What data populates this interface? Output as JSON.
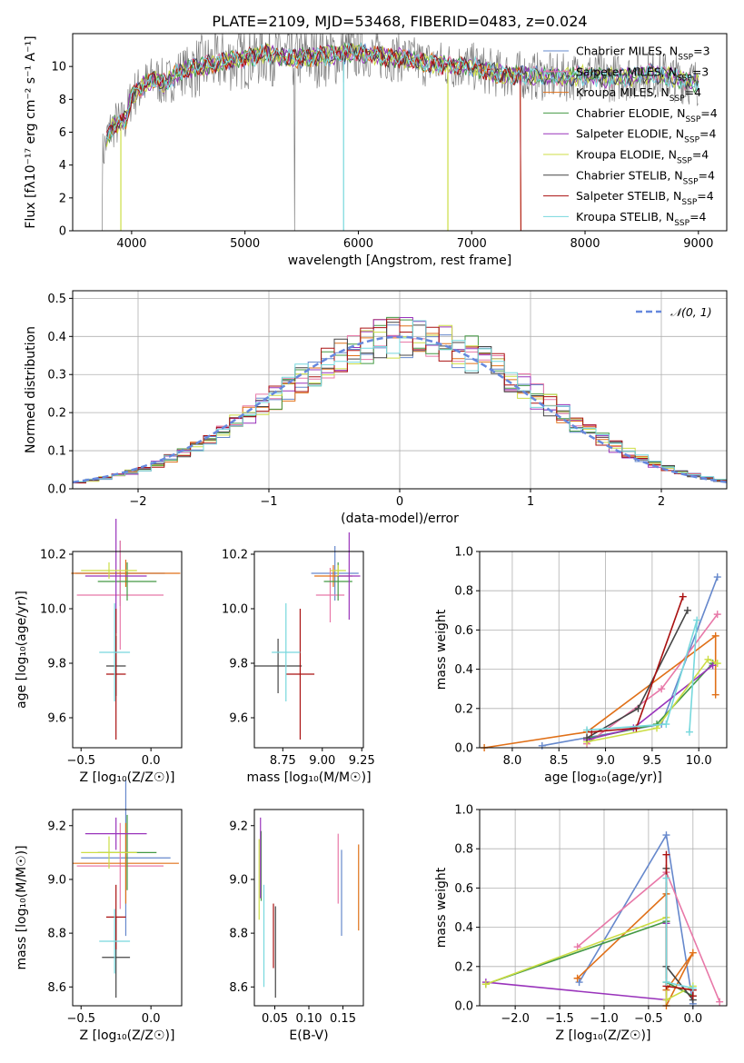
{
  "figure": {
    "title": "PLATE=2109, MJD=53468, FIBERID=0483, z=0.024"
  },
  "models": [
    {
      "name": "Chabrier MILES",
      "nssp": "3",
      "color": "#6688cc"
    },
    {
      "name": "Salpeter MILES",
      "nssp": "3",
      "color": "#e878a8"
    },
    {
      "name": "Kroupa MILES",
      "nssp": "4",
      "color": "#e07018"
    },
    {
      "name": "Chabrier ELODIE",
      "nssp": "4",
      "color": "#449944"
    },
    {
      "name": "Salpeter ELODIE",
      "nssp": "4",
      "color": "#9933bb"
    },
    {
      "name": "Kroupa ELODIE",
      "nssp": "4",
      "color": "#ccdd44"
    },
    {
      "name": "Chabrier STELIB",
      "nssp": "4",
      "color": "#444444"
    },
    {
      "name": "Salpeter STELIB",
      "nssp": "4",
      "color": "#aa1111"
    },
    {
      "name": "Kroupa STELIB",
      "nssp": "4",
      "color": "#77d8dd"
    }
  ],
  "chart_data": [
    {
      "type": "line",
      "id": "spectrum",
      "title": "PLATE=2109, MJD=53468, FIBERID=0483, z=0.024",
      "xlabel": "wavelength [Angstrom, rest frame]",
      "ylabel": "Flux [fλ10⁻¹⁷ erg cm⁻² s⁻¹ A⁻¹]",
      "xlim": [
        3480,
        9250
      ],
      "ylim": [
        0,
        12
      ],
      "xticks": [
        4000,
        5000,
        6000,
        7000,
        8000,
        9000
      ],
      "yticks": [
        0,
        2,
        4,
        6,
        8,
        10
      ],
      "legend": "top-right",
      "legend_entries": [
        "Chabrier MILES, N_SSP=3",
        "Salpeter MILES, N_SSP=3",
        "Kroupa MILES, N_SSP=4",
        "Chabrier ELODIE, N_SSP=4",
        "Salpeter ELODIE, N_SSP=4",
        "Kroupa ELODIE, N_SSP=4",
        "Chabrier STELIB, N_SSP=4",
        "Salpeter STELIB, N_SSP=4",
        "Kroupa STELIB, N_SSP=4"
      ],
      "continuum": {
        "x": [
          3740,
          3800,
          3850,
          3900,
          3950,
          4000,
          4100,
          4200,
          4300,
          4400,
          4600,
          4800,
          5000,
          5200,
          5400,
          5600,
          5800,
          6000,
          6200,
          6400,
          6600,
          6800,
          7000,
          7200,
          7400,
          7600,
          7800,
          8000,
          8200,
          8400,
          8600,
          8800,
          9000
        ],
        "y": [
          4.5,
          6.0,
          6.5,
          6.5,
          6.8,
          8.2,
          8.8,
          9.3,
          8.9,
          9.6,
          10.0,
          10.3,
          10.5,
          10.8,
          10.5,
          10.6,
          10.7,
          10.9,
          10.6,
          10.5,
          10.2,
          10.1,
          10.0,
          9.6,
          9.5,
          9.4,
          9.3,
          9.5,
          9.3,
          9.4,
          9.6,
          9.3,
          9.0
        ]
      },
      "model_cut": {
        "Salpeter STELIB": 7430,
        "Kroupa MILES": 7430
      }
    },
    {
      "type": "bar",
      "id": "residuals",
      "xlabel": "(data-model)/error",
      "ylabel": "Normed distribution",
      "xlim": [
        -2.5,
        2.5
      ],
      "ylim": [
        0,
        0.52
      ],
      "xticks": [
        -2,
        -1,
        0,
        1,
        2
      ],
      "yticks": [
        0.0,
        0.1,
        0.2,
        0.3,
        0.4,
        0.5
      ],
      "grid": true,
      "legend": "top-right",
      "reference": "𝒩(0, 1)",
      "bin_width": 0.1,
      "bin_start": -2.6
    },
    {
      "type": "scatter",
      "id": "age_vs_Z",
      "xlabel": "Z [log₁₀(Z/Z☉)]",
      "ylabel": "age  [log₁₀(age/yr)]",
      "xlim": [
        -0.56,
        0.22
      ],
      "ylim": [
        9.49,
        10.21
      ],
      "xticks": [
        -0.5,
        0.0
      ],
      "yticks": [
        9.6,
        9.8,
        10.0,
        10.2
      ],
      "points": [
        {
          "model": "Chabrier MILES",
          "x": -0.22,
          "y": 10.13,
          "xerr": 0.32,
          "yerr": 0.12
        },
        {
          "model": "Salpeter MILES",
          "x": -0.22,
          "y": 10.05,
          "xerr": 0.31,
          "yerr": 0.2
        },
        {
          "model": "Kroupa MILES",
          "x": -0.18,
          "y": 10.13,
          "xerr": 0.39,
          "yerr": 0.05
        },
        {
          "model": "Chabrier ELODIE",
          "x": -0.17,
          "y": 10.1,
          "xerr": 0.21,
          "yerr": 0.07
        },
        {
          "model": "Salpeter ELODIE",
          "x": -0.25,
          "y": 10.12,
          "xerr": 0.22,
          "yerr": 0.21
        },
        {
          "model": "Kroupa ELODIE",
          "x": -0.3,
          "y": 10.14,
          "xerr": 0.2,
          "yerr": 0.03
        },
        {
          "model": "Chabrier STELIB",
          "x": -0.25,
          "y": 9.79,
          "xerr": 0.07,
          "yerr": 0.11
        },
        {
          "model": "Salpeter STELIB",
          "x": -0.25,
          "y": 9.76,
          "xerr": 0.07,
          "yerr": 0.24
        },
        {
          "model": "Kroupa STELIB",
          "x": -0.26,
          "y": 9.84,
          "xerr": 0.11,
          "yerr": 0.18
        }
      ]
    },
    {
      "type": "scatter",
      "id": "age_vs_mass",
      "xlabel": "mass [log₁₀(M/M☉)]",
      "ylabel": "",
      "xlim": [
        8.57,
        9.26
      ],
      "ylim": [
        9.49,
        10.21
      ],
      "xticks": [
        8.75,
        9.0,
        9.25
      ],
      "yticks": [
        9.6,
        9.8,
        10.0,
        10.2
      ],
      "points": [
        {
          "model": "Chabrier MILES",
          "x": 9.08,
          "y": 10.13,
          "xerr": 0.15,
          "yerr": 0.1
        },
        {
          "model": "Salpeter MILES",
          "x": 9.05,
          "y": 10.05,
          "xerr": 0.09,
          "yerr": 0.1
        },
        {
          "model": "Kroupa MILES",
          "x": 9.07,
          "y": 10.12,
          "xerr": 0.12,
          "yerr": 0.04
        },
        {
          "model": "Chabrier ELODIE",
          "x": 9.1,
          "y": 10.1,
          "xerr": 0.09,
          "yerr": 0.07
        },
        {
          "model": "Salpeter ELODIE",
          "x": 9.17,
          "y": 10.12,
          "xerr": 0.07,
          "yerr": 0.16
        },
        {
          "model": "Kroupa ELODIE",
          "x": 9.1,
          "y": 10.14,
          "xerr": 0.05,
          "yerr": 0.02
        },
        {
          "model": "Chabrier STELIB",
          "x": 8.72,
          "y": 9.79,
          "xerr": 0.15,
          "yerr": 0.1
        },
        {
          "model": "Salpeter STELIB",
          "x": 8.86,
          "y": 9.76,
          "xerr": 0.09,
          "yerr": 0.24
        },
        {
          "model": "Kroupa STELIB",
          "x": 8.77,
          "y": 9.84,
          "xerr": 0.09,
          "yerr": 0.18
        }
      ]
    },
    {
      "type": "line",
      "id": "weight_vs_age",
      "xlabel": "age  [log₁₀(age/yr)]",
      "ylabel": "mass weight",
      "xlim": [
        7.65,
        10.3
      ],
      "ylim": [
        0,
        1.0
      ],
      "xticks": [
        8.0,
        8.5,
        9.0,
        9.5,
        10.0
      ],
      "yticks": [
        0.0,
        0.2,
        0.4,
        0.6,
        0.8,
        1.0
      ],
      "grid": true,
      "series": [
        {
          "model": "Chabrier MILES",
          "x": [
            8.32,
            9.6,
            10.2
          ],
          "y": [
            0.01,
            0.12,
            0.87
          ]
        },
        {
          "model": "Salpeter MILES",
          "x": [
            8.8,
            9.6,
            10.2
          ],
          "y": [
            0.02,
            0.3,
            0.68
          ]
        },
        {
          "model": "Kroupa MILES",
          "x": [
            7.7,
            8.8,
            10.18,
            10.18
          ],
          "y": [
            0.0,
            0.08,
            0.57,
            0.27
          ]
        },
        {
          "model": "Chabrier ELODIE",
          "x": [
            8.85,
            9.55,
            10.15
          ],
          "y": [
            0.05,
            0.12,
            0.43
          ]
        },
        {
          "model": "Salpeter ELODIE",
          "x": [
            8.8,
            9.3,
            10.15
          ],
          "y": [
            0.04,
            0.1,
            0.42
          ]
        },
        {
          "model": "Kroupa ELODIE",
          "x": [
            8.8,
            9.55,
            10.1,
            10.2
          ],
          "y": [
            0.03,
            0.1,
            0.45,
            0.43
          ]
        },
        {
          "model": "Chabrier STELIB",
          "x": [
            8.8,
            9.35,
            9.88
          ],
          "y": [
            0.05,
            0.2,
            0.7
          ]
        },
        {
          "model": "Salpeter STELIB",
          "x": [
            8.85,
            9.33,
            9.83
          ],
          "y": [
            0.08,
            0.1,
            0.77
          ]
        },
        {
          "model": "Kroupa STELIB",
          "x": [
            8.8,
            9.65,
            9.98,
            9.9
          ],
          "y": [
            0.09,
            0.12,
            0.65,
            0.08
          ]
        }
      ]
    },
    {
      "type": "scatter",
      "id": "mass_vs_Z",
      "xlabel": "Z [log₁₀(Z/Z☉)]",
      "ylabel": "mass [log₁₀(M/M☉)]",
      "xlim": [
        -0.56,
        0.22
      ],
      "ylim": [
        8.53,
        9.26
      ],
      "xticks": [
        -0.5,
        0.0
      ],
      "yticks": [
        8.6,
        8.8,
        9.0,
        9.2
      ],
      "points": [
        {
          "model": "Chabrier MILES",
          "x": -0.18,
          "y": 9.08,
          "xerr": 0.32,
          "yerr": 0.29
        },
        {
          "model": "Salpeter MILES",
          "x": -0.22,
          "y": 9.05,
          "xerr": 0.31,
          "yerr": 0.16
        },
        {
          "model": "Kroupa MILES",
          "x": -0.18,
          "y": 9.06,
          "xerr": 0.38,
          "yerr": 0.15
        },
        {
          "model": "Chabrier ELODIE",
          "x": -0.17,
          "y": 9.1,
          "xerr": 0.21,
          "yerr": 0.14
        },
        {
          "model": "Salpeter ELODIE",
          "x": -0.25,
          "y": 9.17,
          "xerr": 0.22,
          "yerr": 0.06
        },
        {
          "model": "Kroupa ELODIE",
          "x": -0.3,
          "y": 9.1,
          "xerr": 0.2,
          "yerr": 0.06
        },
        {
          "model": "Chabrier STELIB",
          "x": -0.25,
          "y": 8.71,
          "xerr": 0.1,
          "yerr": 0.15
        },
        {
          "model": "Salpeter STELIB",
          "x": -0.25,
          "y": 8.86,
          "xerr": 0.07,
          "yerr": 0.12
        },
        {
          "model": "Kroupa STELIB",
          "x": -0.26,
          "y": 8.77,
          "xerr": 0.11,
          "yerr": 0.12
        }
      ]
    },
    {
      "type": "scatter",
      "id": "mass_vs_ebv",
      "xlabel": "E(B-V)",
      "ylabel": "",
      "xlim": [
        0.02,
        0.18
      ],
      "ylim": [
        8.53,
        9.26
      ],
      "xticks": [
        0.05,
        0.1,
        0.15
      ],
      "yticks": [
        8.6,
        8.8,
        9.0,
        9.2
      ],
      "points": [
        {
          "model": "Chabrier MILES",
          "x": 0.148,
          "y": 8.95,
          "xerr": 0,
          "yerr": 0.16
        },
        {
          "model": "Salpeter MILES",
          "x": 0.143,
          "y": 9.04,
          "xerr": 0,
          "yerr": 0.13
        },
        {
          "model": "Kroupa MILES",
          "x": 0.173,
          "y": 8.97,
          "xerr": 0,
          "yerr": 0.16
        },
        {
          "model": "Chabrier ELODIE",
          "x": 0.03,
          "y": 9.05,
          "xerr": 0,
          "yerr": 0.13
        },
        {
          "model": "Salpeter ELODIE",
          "x": 0.029,
          "y": 9.08,
          "xerr": 0,
          "yerr": 0.15
        },
        {
          "model": "Kroupa ELODIE",
          "x": 0.027,
          "y": 9.0,
          "xerr": 0,
          "yerr": 0.15
        },
        {
          "model": "Chabrier STELIB",
          "x": 0.051,
          "y": 8.73,
          "xerr": 0,
          "yerr": 0.17
        },
        {
          "model": "Salpeter STELIB",
          "x": 0.048,
          "y": 8.79,
          "xerr": 0,
          "yerr": 0.12
        },
        {
          "model": "Kroupa STELIB",
          "x": 0.034,
          "y": 8.79,
          "xerr": 0,
          "yerr": 0.19
        }
      ]
    },
    {
      "type": "line",
      "id": "weight_vs_Z",
      "xlabel": "Z [log₁₀(Z/Z☉)]",
      "ylabel": "mass weight",
      "xlim": [
        -2.4,
        0.38
      ],
      "ylim": [
        0,
        1.0
      ],
      "xticks": [
        -2.0,
        -1.5,
        -1.0,
        -0.5,
        0.0
      ],
      "yticks": [
        0.0,
        0.2,
        0.4,
        0.6,
        0.8,
        1.0
      ],
      "grid": true,
      "series": [
        {
          "model": "Chabrier MILES",
          "x": [
            -1.28,
            -0.3,
            0.0
          ],
          "y": [
            0.12,
            0.87,
            0.01
          ]
        },
        {
          "model": "Salpeter MILES",
          "x": [
            -1.3,
            -0.3,
            0.3
          ],
          "y": [
            0.3,
            0.68,
            0.02
          ]
        },
        {
          "model": "Kroupa MILES",
          "x": [
            -1.3,
            -0.3,
            -0.3,
            0.0,
            -0.3
          ],
          "y": [
            0.14,
            0.57,
            0.0,
            0.27,
            0.08
          ]
        },
        {
          "model": "Chabrier ELODIE",
          "x": [
            -2.33,
            -0.3,
            -0.3,
            0.0
          ],
          "y": [
            0.11,
            0.43,
            0.12,
            0.05
          ]
        },
        {
          "model": "Salpeter ELODIE",
          "x": [
            -2.33,
            -0.3,
            -0.3
          ],
          "y": [
            0.12,
            0.03,
            0.42
          ]
        },
        {
          "model": "Kroupa ELODIE",
          "x": [
            -2.33,
            -0.3,
            -0.3,
            0.0
          ],
          "y": [
            0.11,
            0.45,
            0.03,
            0.1
          ]
        },
        {
          "model": "Chabrier STELIB",
          "x": [
            -0.3,
            -0.3,
            0.0
          ],
          "y": [
            0.7,
            0.2,
            0.03
          ]
        },
        {
          "model": "Salpeter STELIB",
          "x": [
            -0.3,
            -0.3,
            0.0,
            0.0
          ],
          "y": [
            0.77,
            0.1,
            0.08,
            0.05
          ]
        },
        {
          "model": "Kroupa STELIB",
          "x": [
            -0.3,
            -0.3,
            0.0
          ],
          "y": [
            0.65,
            0.12,
            0.09
          ]
        }
      ]
    }
  ]
}
